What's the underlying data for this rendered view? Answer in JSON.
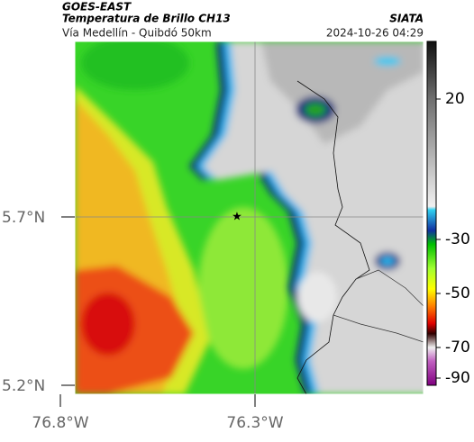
{
  "header": {
    "satellite": "GOES-EAST",
    "product": "Temperatura de Brillo CH13",
    "source": "SIATA",
    "region": "Vía Medellín - Quibdó 50km",
    "timestamp": "2024-10-26 04:29"
  },
  "axes": {
    "lat_labels": [
      "5.7°N",
      "5.2°N"
    ],
    "lon_labels": [
      "76.8°W",
      "76.3°W"
    ]
  },
  "colorbar": {
    "ticks": [
      20,
      -30,
      -50,
      -70,
      -90
    ]
  }
}
